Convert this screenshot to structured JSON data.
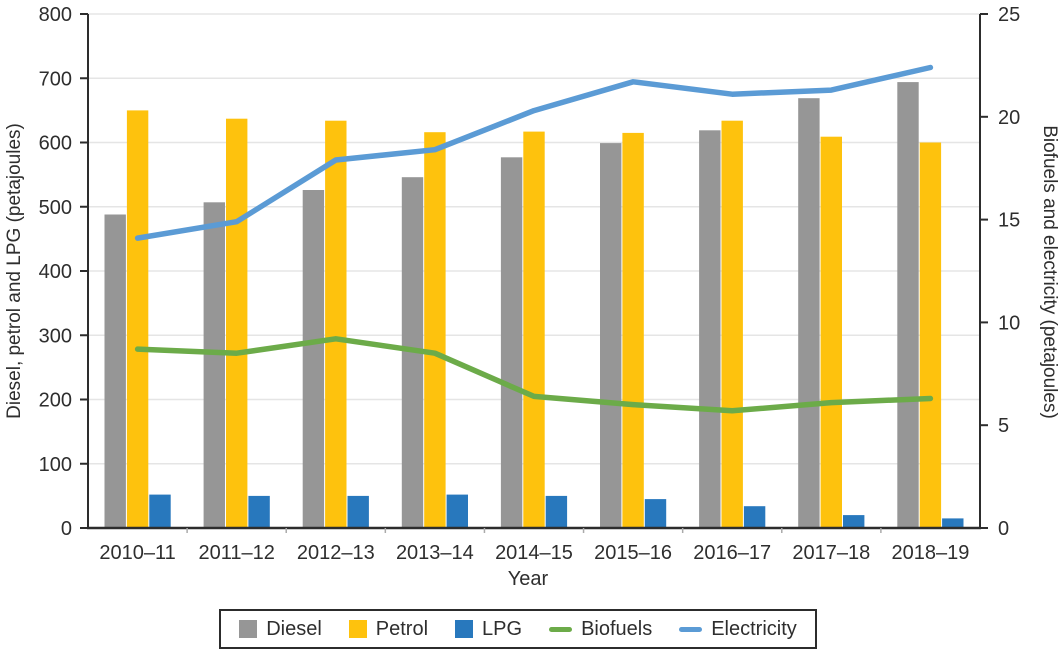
{
  "colors": {
    "grid": "#e5e5e5",
    "axis": "#2d2d2d",
    "minor_tick": "#aaaaaa",
    "text": "#2e2e2e",
    "background": "#ffffff"
  },
  "chart_data": {
    "type": "combo",
    "categories": [
      "2010–11",
      "2011–12",
      "2012–13",
      "2013–14",
      "2014–15",
      "2015–16",
      "2016–17",
      "2017–18",
      "2018–19"
    ],
    "bar_series": [
      {
        "name": "Diesel",
        "axis": "left",
        "color": "#969696",
        "values": [
          488,
          507,
          526,
          546,
          577,
          599,
          619,
          669,
          694
        ]
      },
      {
        "name": "Petrol",
        "axis": "left",
        "color": "#fec20d",
        "values": [
          650,
          637,
          634,
          616,
          617,
          615,
          634,
          609,
          600
        ]
      },
      {
        "name": "LPG",
        "axis": "left",
        "color": "#2878bd",
        "values": [
          52,
          50,
          50,
          52,
          50,
          45,
          34,
          20,
          15
        ]
      }
    ],
    "line_series": [
      {
        "name": "Biofuels",
        "axis": "right",
        "color": "#6cab49",
        "values": [
          8.7,
          8.5,
          9.2,
          8.5,
          6.4,
          6.0,
          5.7,
          6.1,
          6.3
        ]
      },
      {
        "name": "Electricity",
        "axis": "right",
        "color": "#5b9bd5",
        "values": [
          14.1,
          14.9,
          17.9,
          18.4,
          20.3,
          21.7,
          21.1,
          21.3,
          22.4
        ]
      }
    ],
    "left_axis": {
      "label": "Diesel, petrol and LPG (petajoules)",
      "min": 0,
      "max": 800,
      "step": 100
    },
    "right_axis": {
      "label": "Biofuels and electricity (petajoules)",
      "min": 0,
      "max": 25,
      "step": 5
    },
    "x_axis": {
      "label": "Year"
    },
    "grid": "horizontal",
    "legend_position": "bottom"
  },
  "legend": {
    "items": [
      {
        "label": "Diesel",
        "swatch": "square",
        "color": "#969696"
      },
      {
        "label": "Petrol",
        "swatch": "square",
        "color": "#fec20d"
      },
      {
        "label": "LPG",
        "swatch": "square",
        "color": "#2878bd"
      },
      {
        "label": "Biofuels",
        "swatch": "line",
        "color": "#6cab49"
      },
      {
        "label": "Electricity",
        "swatch": "line",
        "color": "#5b9bd5"
      }
    ]
  }
}
